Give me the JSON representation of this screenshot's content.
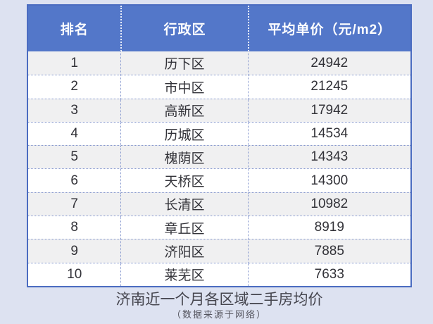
{
  "page": {
    "background_color": "#dde2f1"
  },
  "table": {
    "header": {
      "rank": "排名",
      "district": "行政区",
      "price": "平均单价（元/m2）"
    },
    "rows": [
      {
        "rank": "1",
        "district": "历下区",
        "price": "24942"
      },
      {
        "rank": "2",
        "district": "市中区",
        "price": "21245"
      },
      {
        "rank": "3",
        "district": "高新区",
        "price": "17942"
      },
      {
        "rank": "4",
        "district": "历城区",
        "price": "14534"
      },
      {
        "rank": "5",
        "district": "槐荫区",
        "price": "14343"
      },
      {
        "rank": "6",
        "district": "天桥区",
        "price": "14300"
      },
      {
        "rank": "7",
        "district": "长清区",
        "price": "10982"
      },
      {
        "rank": "8",
        "district": "章丘区",
        "price": "8919"
      },
      {
        "rank": "9",
        "district": "济阳区",
        "price": "7885"
      },
      {
        "rank": "10",
        "district": "莱芜区",
        "price": "7633"
      }
    ],
    "colors": {
      "header_bg": "#5377c9",
      "header_text": "#ffffff",
      "outer_border": "#4b6cc1",
      "dotted_line": "#8395cd",
      "row_odd_bg": "#f0f0f1",
      "row_even_bg": "#ffffff",
      "body_text": "#323238"
    }
  },
  "caption": {
    "title": "济南近一个月各区域二手房均价",
    "source": "（数据来源于网络）"
  },
  "chart_data": {
    "type": "table",
    "title": "济南近一个月各区域二手房均价",
    "subtitle": "（数据来源于网络）",
    "columns": [
      "排名",
      "行政区",
      "平均单价（元/m2）"
    ],
    "rows": [
      [
        1,
        "历下区",
        24942
      ],
      [
        2,
        "市中区",
        21245
      ],
      [
        3,
        "高新区",
        17942
      ],
      [
        4,
        "历城区",
        14534
      ],
      [
        5,
        "槐荫区",
        14343
      ],
      [
        6,
        "天桥区",
        14300
      ],
      [
        7,
        "长清区",
        10982
      ],
      [
        8,
        "章丘区",
        8919
      ],
      [
        9,
        "济阳区",
        7885
      ],
      [
        10,
        "莱芜区",
        7633
      ]
    ]
  }
}
